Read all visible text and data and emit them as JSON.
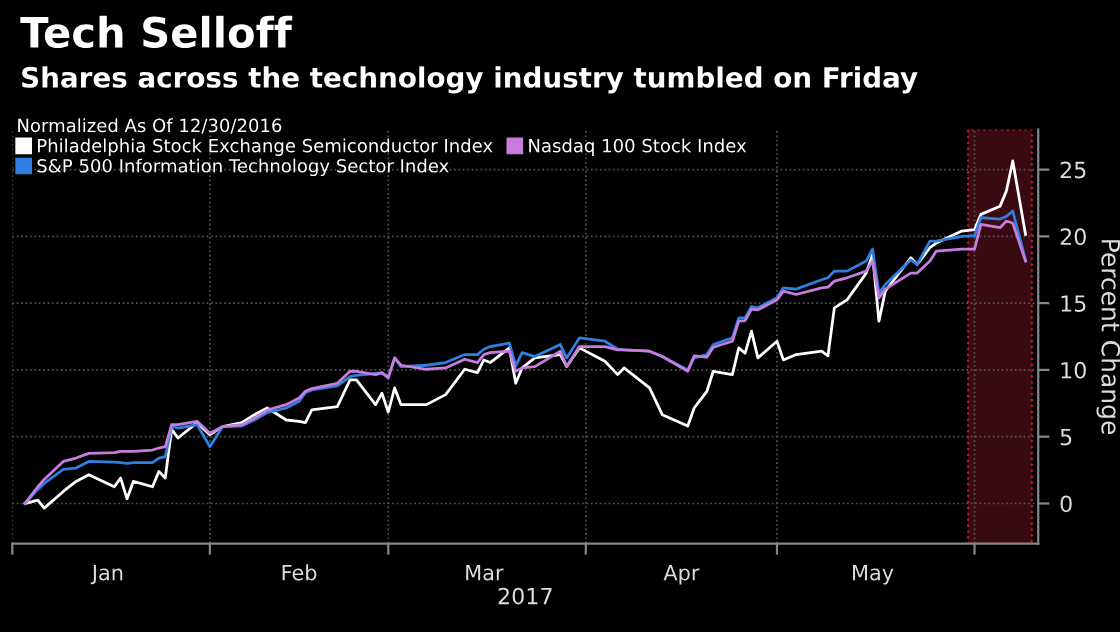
{
  "chart_data": {
    "type": "line",
    "title": "Tech Selloff",
    "subtitle": "Shares across the technology industry tumbled on Friday",
    "legend_title": "Normalized As Of 12/30/2016",
    "xlabel": "2017",
    "ylabel": "Percent Change",
    "x": [
      "2017-01-03",
      "2017-01-05",
      "2017-01-06",
      "2017-01-09",
      "2017-01-11",
      "2017-01-13",
      "2017-01-17",
      "2017-01-18",
      "2017-01-19",
      "2017-01-20",
      "2017-01-23",
      "2017-01-24",
      "2017-01-25",
      "2017-01-26",
      "2017-01-27",
      "2017-01-30",
      "2017-02-01",
      "2017-02-03",
      "2017-02-06",
      "2017-02-08",
      "2017-02-10",
      "2017-02-13",
      "2017-02-15",
      "2017-02-16",
      "2017-02-17",
      "2017-02-21",
      "2017-02-23",
      "2017-02-24",
      "2017-02-27",
      "2017-02-28",
      "2017-03-01",
      "2017-03-02",
      "2017-03-03",
      "2017-03-07",
      "2017-03-10",
      "2017-03-13",
      "2017-03-15",
      "2017-03-16",
      "2017-03-17",
      "2017-03-20",
      "2017-03-21",
      "2017-03-22",
      "2017-03-24",
      "2017-03-28",
      "2017-03-29",
      "2017-03-31",
      "2017-04-04",
      "2017-04-06",
      "2017-04-07",
      "2017-04-11",
      "2017-04-13",
      "2017-04-17",
      "2017-04-18",
      "2017-04-20",
      "2017-04-21",
      "2017-04-24",
      "2017-04-25",
      "2017-04-26",
      "2017-04-27",
      "2017-04-28",
      "2017-05-01",
      "2017-05-02",
      "2017-05-04",
      "2017-05-08",
      "2017-05-09",
      "2017-05-10",
      "2017-05-12",
      "2017-05-15",
      "2017-05-16",
      "2017-05-17",
      "2017-05-18",
      "2017-05-22",
      "2017-05-23",
      "2017-05-25",
      "2017-05-26",
      "2017-05-30",
      "2017-06-01",
      "2017-06-02",
      "2017-06-05",
      "2017-06-06",
      "2017-06-07",
      "2017-06-09"
    ],
    "series": [
      {
        "name": "Philadelphia Stock Exchange Semiconductor Index",
        "color": "#ffffff",
        "values": [
          0,
          0.25,
          -0.35,
          0.9,
          1.65,
          2.15,
          1.25,
          1.9,
          0.35,
          1.65,
          1.25,
          2.4,
          1.9,
          5.55,
          4.9,
          6.05,
          5.15,
          5.75,
          6.05,
          6.65,
          7.15,
          6.25,
          6.15,
          6.05,
          7.0,
          7.25,
          9.25,
          9.25,
          7.4,
          8.25,
          6.85,
          8.65,
          7.4,
          7.4,
          8.15,
          10.05,
          9.8,
          10.75,
          10.55,
          11.65,
          9.0,
          10.15,
          10.9,
          11.15,
          10.25,
          11.65,
          10.65,
          9.65,
          10.15,
          8.65,
          6.65,
          5.8,
          7.15,
          8.4,
          9.9,
          9.65,
          11.65,
          11.25,
          12.9,
          10.9,
          12.15,
          10.75,
          11.15,
          11.4,
          11.05,
          14.65,
          15.25,
          17.25,
          18.65,
          13.65,
          15.9,
          18.4,
          17.9,
          19.15,
          19.5,
          20.4,
          20.5,
          21.65,
          22.25,
          23.4,
          25.65,
          20.15
        ]
      },
      {
        "name": "S&P 500 Information Technology Sector Index",
        "color": "#2e7fe0",
        "values": [
          0,
          1.05,
          1.5,
          2.55,
          2.65,
          3.15,
          3.1,
          3.05,
          3.0,
          3.05,
          3.05,
          3.4,
          3.5,
          5.75,
          5.65,
          5.9,
          4.25,
          5.75,
          5.8,
          6.25,
          6.8,
          7.15,
          7.65,
          8.3,
          8.5,
          8.8,
          9.5,
          9.6,
          9.75,
          9.75,
          9.5,
          10.9,
          10.25,
          10.35,
          10.55,
          11.15,
          11.15,
          11.55,
          11.75,
          12.0,
          10.3,
          11.3,
          11.0,
          11.9,
          10.9,
          12.4,
          12.15,
          11.55,
          11.5,
          11.4,
          11.0,
          10.0,
          10.9,
          11.15,
          11.9,
          12.4,
          13.9,
          13.9,
          14.75,
          14.65,
          15.4,
          16.15,
          16.05,
          16.75,
          16.9,
          17.4,
          17.4,
          18.15,
          19.05,
          15.75,
          16.4,
          18.25,
          17.9,
          19.65,
          19.65,
          20.0,
          20.05,
          21.4,
          21.3,
          21.5,
          21.9,
          18.25
        ]
      },
      {
        "name": "Nasdaq 100 Stock Index",
        "color": "#c77ddb",
        "values": [
          0,
          1.25,
          1.8,
          3.15,
          3.4,
          3.75,
          3.8,
          3.9,
          3.9,
          3.9,
          4.0,
          4.15,
          4.25,
          5.9,
          5.9,
          6.15,
          5.25,
          5.75,
          5.9,
          6.4,
          7.0,
          7.4,
          7.9,
          8.4,
          8.6,
          9.0,
          9.9,
          9.9,
          9.65,
          9.8,
          9.4,
          10.9,
          10.35,
          10.05,
          10.15,
          10.8,
          10.55,
          11.15,
          11.3,
          11.4,
          9.9,
          10.15,
          10.25,
          11.4,
          10.25,
          11.75,
          11.75,
          11.5,
          11.5,
          11.4,
          11.0,
          9.9,
          11.05,
          10.95,
          11.7,
          12.15,
          13.65,
          13.7,
          14.55,
          14.5,
          15.25,
          15.9,
          15.65,
          16.15,
          16.2,
          16.65,
          16.9,
          17.4,
          18.15,
          15.4,
          16.05,
          17.25,
          17.25,
          18.15,
          18.9,
          19.05,
          19.05,
          20.9,
          20.65,
          21.15,
          21.0,
          18.15
        ]
      }
    ],
    "xlim": [
      "2017-01-01",
      "2017-06-11"
    ],
    "xticks": [
      {
        "value": "2017-01-01",
        "label": null
      },
      {
        "value": "2017-01-16",
        "label": "Jan"
      },
      {
        "value": "2017-02-01",
        "label": null
      },
      {
        "value": "2017-02-15",
        "label": "Feb"
      },
      {
        "value": "2017-03-01",
        "label": null
      },
      {
        "value": "2017-03-16",
        "label": "Mar"
      },
      {
        "value": "2017-04-01",
        "label": null
      },
      {
        "value": "2017-04-16",
        "label": "Apr"
      },
      {
        "value": "2017-05-01",
        "label": null
      },
      {
        "value": "2017-05-16",
        "label": "May"
      },
      {
        "value": "2017-06-01",
        "label": null
      }
    ],
    "ylim": [
      -3,
      28
    ],
    "yticks": [
      0,
      5,
      10,
      15,
      20,
      25
    ],
    "bands": [
      {
        "axis": "x",
        "from": "2017-05-31",
        "to": "2017-06-10",
        "color": "#3a0a12"
      }
    ],
    "grid": true,
    "legend": "top left",
    "marker": "none",
    "line_style": "solid"
  }
}
